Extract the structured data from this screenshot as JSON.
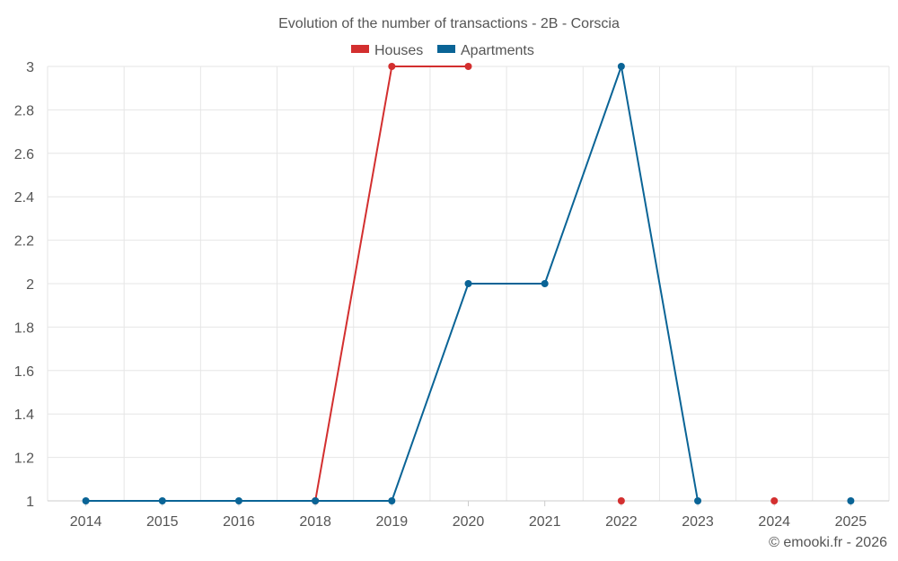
{
  "chart_data": {
    "type": "line",
    "title": "Evolution of the number of transactions - 2B - Corscia",
    "categories": [
      "2014",
      "2015",
      "2016",
      "2018",
      "2019",
      "2020",
      "2021",
      "2022",
      "2023",
      "2024",
      "2025"
    ],
    "series": [
      {
        "name": "Houses",
        "color": "#d32f2f",
        "values": [
          null,
          null,
          null,
          1,
          3,
          3,
          null,
          1,
          null,
          1,
          null
        ]
      },
      {
        "name": "Apartments",
        "color": "#0a6496",
        "values": [
          1,
          1,
          1,
          1,
          1,
          2,
          2,
          3,
          1,
          null,
          1
        ]
      }
    ],
    "yticks": [
      "1",
      "1.2",
      "1.4",
      "1.6",
      "1.8",
      "2",
      "2.2",
      "2.4",
      "2.6",
      "2.8",
      "3"
    ],
    "ylim": [
      1,
      3
    ],
    "grid": true,
    "legend": "top-center"
  },
  "credit": "© emooki.fr - 2026"
}
